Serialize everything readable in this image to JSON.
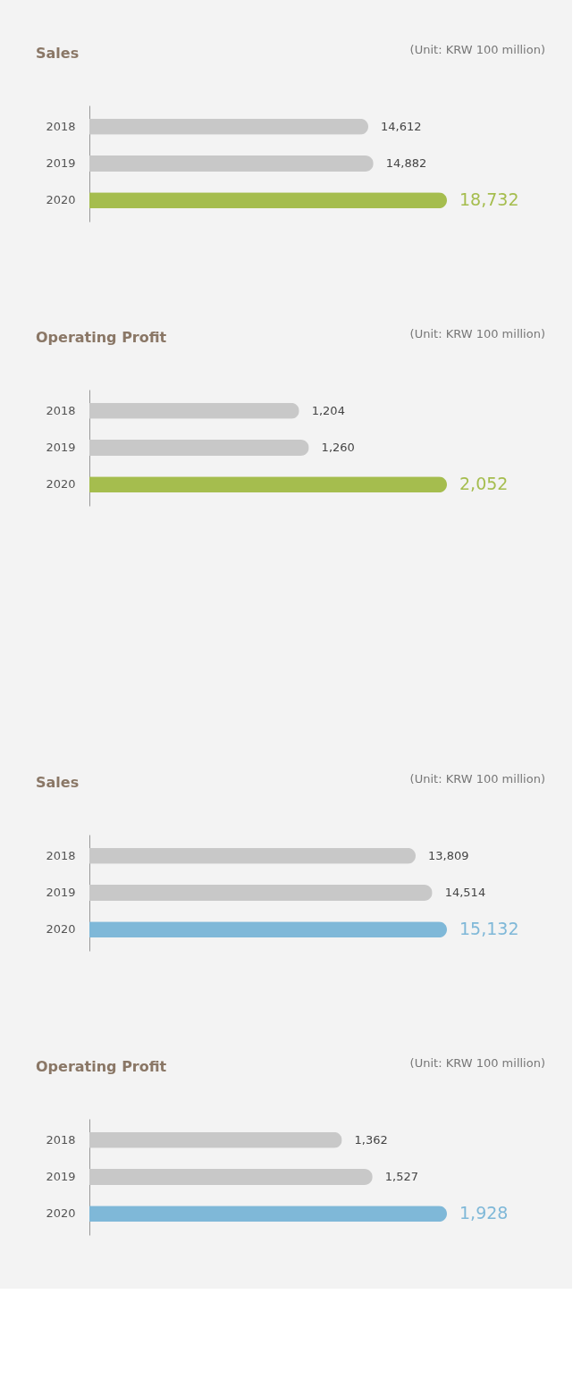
{
  "chart_data": [
    {
      "type": "bar",
      "orientation": "horizontal",
      "title": "Sales",
      "annotations": [
        "(Unit: KRW 100 million)"
      ],
      "categories": [
        "2018",
        "2019",
        "2020"
      ],
      "values": [
        14612,
        14882,
        18732
      ],
      "value_labels": [
        "14,612",
        "14,882",
        "18,732"
      ],
      "colors": [
        "#c8c8c8",
        "#c8c8c8",
        "#a5bd4e"
      ],
      "tick_labels": "y"
    },
    {
      "type": "bar",
      "orientation": "horizontal",
      "title": "Operating Profit",
      "annotations": [
        "(Unit: KRW 100 million)"
      ],
      "categories": [
        "2018",
        "2019",
        "2020"
      ],
      "values": [
        1204,
        1260,
        2052
      ],
      "value_labels": [
        "1,204",
        "1,260",
        "2,052"
      ],
      "colors": [
        "#c8c8c8",
        "#c8c8c8",
        "#a5bd4e"
      ],
      "tick_labels": "y"
    },
    {
      "type": "bar",
      "orientation": "horizontal",
      "title": "Sales",
      "annotations": [
        "(Unit: KRW 100 million)"
      ],
      "categories": [
        "2018",
        "2019",
        "2020"
      ],
      "values": [
        13809,
        14514,
        15132
      ],
      "value_labels": [
        "13,809",
        "14,514",
        "15,132"
      ],
      "colors": [
        "#c8c8c8",
        "#c8c8c8",
        "#7fb8d8"
      ],
      "tick_labels": "y"
    },
    {
      "type": "bar",
      "orientation": "horizontal",
      "title": "Operating Profit",
      "annotations": [
        "(Unit: KRW 100 million)"
      ],
      "categories": [
        "2018",
        "2019",
        "2020"
      ],
      "values": [
        1362,
        1527,
        1928
      ],
      "value_labels": [
        "1,362",
        "1,527",
        "1,928"
      ],
      "colors": [
        "#c8c8c8",
        "#c8c8c8",
        "#7fb8d8"
      ],
      "tick_labels": "y"
    }
  ]
}
